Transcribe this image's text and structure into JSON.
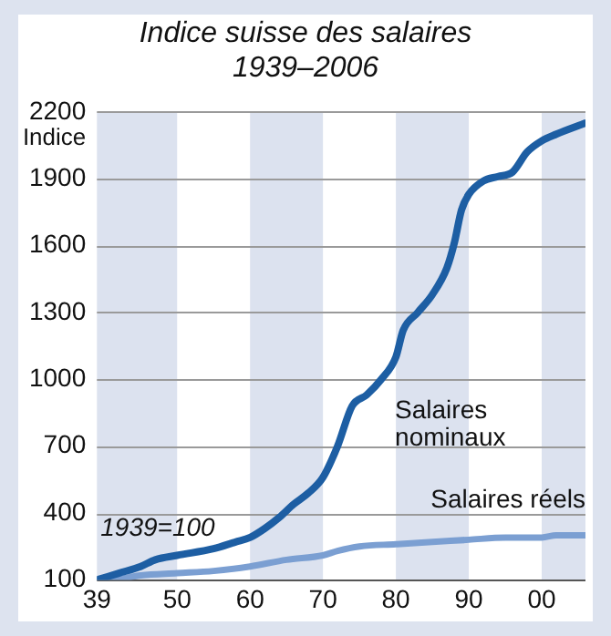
{
  "chart_data": {
    "type": "line",
    "title": "Indice suisse des salaires",
    "subtitle": "1939–2006",
    "ylabel": "Indice",
    "annotations": [
      "1939=100"
    ],
    "xlim": [
      1939,
      2006
    ],
    "xticks": [
      {
        "value": 1939,
        "label": "39"
      },
      {
        "value": 1950,
        "label": "50"
      },
      {
        "value": 1960,
        "label": "60"
      },
      {
        "value": 1970,
        "label": "70"
      },
      {
        "value": 1980,
        "label": "80"
      },
      {
        "value": 1990,
        "label": "90"
      },
      {
        "value": 2000,
        "label": "00"
      }
    ],
    "ylim": [
      100,
      2200
    ],
    "yticks": [
      100,
      400,
      700,
      1000,
      1300,
      1600,
      1900,
      2200
    ],
    "grid": "y",
    "legend": false,
    "marker": "none",
    "line_style": "solid",
    "bands": [
      {
        "axis": "x",
        "from": 1939,
        "to": 1950,
        "color": "#dce2ef"
      },
      {
        "axis": "x",
        "from": 1960,
        "to": 1970,
        "color": "#dce2ef"
      },
      {
        "axis": "x",
        "from": 1980,
        "to": 1990,
        "color": "#dce2ef"
      },
      {
        "axis": "x",
        "from": 2000,
        "to": 2006,
        "color": "#dce2ef"
      }
    ],
    "series": [
      {
        "name": "Salaires nominaux",
        "color": "#1d5ea3",
        "x": [
          1939,
          1942,
          1945,
          1947,
          1950,
          1955,
          1958,
          1960,
          1962,
          1964,
          1966,
          1968,
          1970,
          1972,
          1974,
          1976,
          1978,
          1980,
          1981,
          1983,
          1985,
          1987,
          1988,
          1989,
          1990,
          1992,
          1994,
          1996,
          1998,
          2000,
          2002,
          2006
        ],
        "values": [
          100,
          130,
          160,
          190,
          210,
          240,
          270,
          290,
          330,
          380,
          440,
          490,
          560,
          700,
          880,
          930,
          1000,
          1100,
          1220,
          1300,
          1380,
          1500,
          1610,
          1760,
          1830,
          1890,
          1910,
          1930,
          2020,
          2070,
          2100,
          2150
        ]
      },
      {
        "name": "Salaires réels",
        "color": "#7b9fd2",
        "x": [
          1939,
          1941,
          1945,
          1950,
          1955,
          1960,
          1965,
          1970,
          1972,
          1975,
          1980,
          1985,
          1990,
          1995,
          2000,
          2002,
          2006
        ],
        "values": [
          100,
          100,
          120,
          130,
          140,
          160,
          190,
          210,
          230,
          250,
          260,
          270,
          280,
          290,
          290,
          300,
          300
        ]
      }
    ]
  }
}
